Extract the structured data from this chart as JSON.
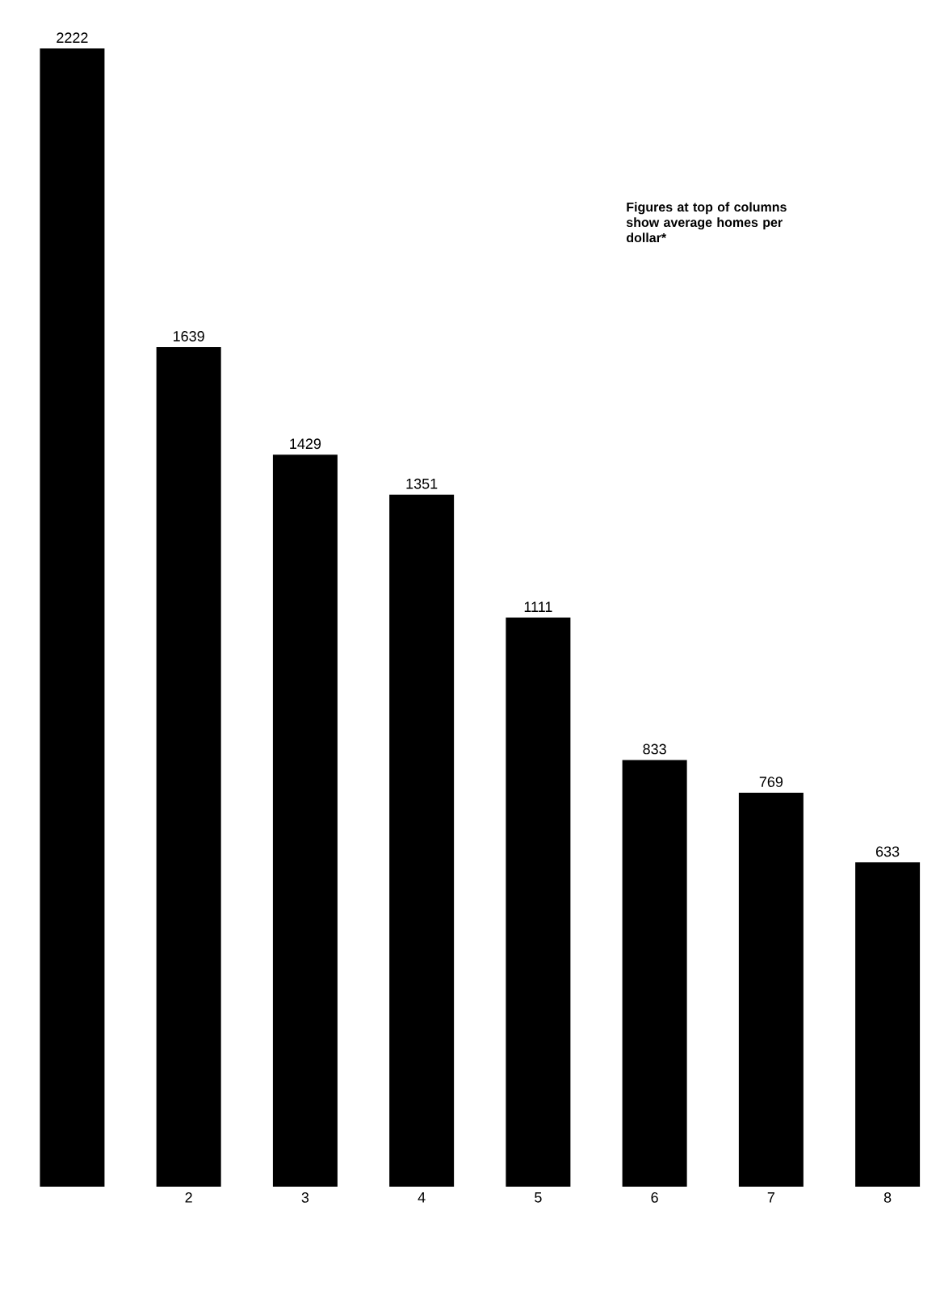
{
  "chart_data": {
    "type": "bar",
    "categories": [
      null,
      "2",
      "3",
      "4",
      "5",
      "6",
      "7",
      "8"
    ],
    "values": [
      2222,
      1639,
      1429,
      1351,
      1111,
      833,
      769,
      633
    ],
    "color": "#000000",
    "data_labels": true,
    "annotations": [
      "Figures at top of columns show average homes per dollar*"
    ]
  }
}
